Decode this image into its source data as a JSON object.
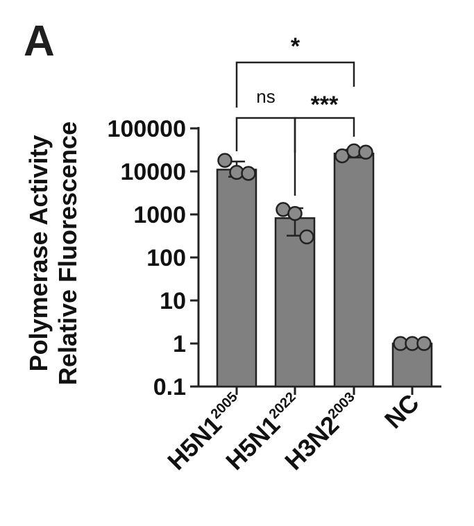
{
  "panel_label": "A",
  "chart_data": {
    "type": "bar",
    "scale": "log10",
    "ylabel_lines": [
      "Polymerase Activity",
      "Relative Fluorescence"
    ],
    "xlabel": "",
    "ylim": [
      0.1,
      100000
    ],
    "yticks": [
      {
        "value": 0.1,
        "label": "0.1"
      },
      {
        "value": 1,
        "label": "1"
      },
      {
        "value": 10,
        "label": "10"
      },
      {
        "value": 100,
        "label": "100"
      },
      {
        "value": 1000,
        "label": "1000"
      },
      {
        "value": 10000,
        "label": "10000"
      },
      {
        "value": 100000,
        "label": "100000"
      }
    ],
    "categories": [
      {
        "name": "H5N1",
        "superscript": "2005",
        "value": 11000,
        "error_low": 7500,
        "error_high": 17000,
        "points": [
          18000,
          9500,
          9000
        ]
      },
      {
        "name": "H5N1",
        "superscript": "2022",
        "value": 820,
        "error_low": 320,
        "error_high": 1400,
        "points": [
          1300,
          1050,
          300
        ]
      },
      {
        "name": "H3N2",
        "superscript": "2003",
        "value": 26000,
        "error_low": 21000,
        "error_high": 32000,
        "points": [
          23000,
          30000,
          28000
        ]
      },
      {
        "name": "NC",
        "superscript": "",
        "value": 1,
        "error_low": 1,
        "error_high": 1,
        "points": [
          1,
          1,
          1
        ]
      }
    ],
    "comparisons": [
      {
        "from": 0,
        "to": 1,
        "label": "ns"
      },
      {
        "from": 1,
        "to": 2,
        "label": "***"
      },
      {
        "from": 0,
        "to": 2,
        "label": "*"
      }
    ],
    "colors": {
      "bar": "#808080",
      "point": "#8a8a8a",
      "stroke": "#222222"
    }
  }
}
